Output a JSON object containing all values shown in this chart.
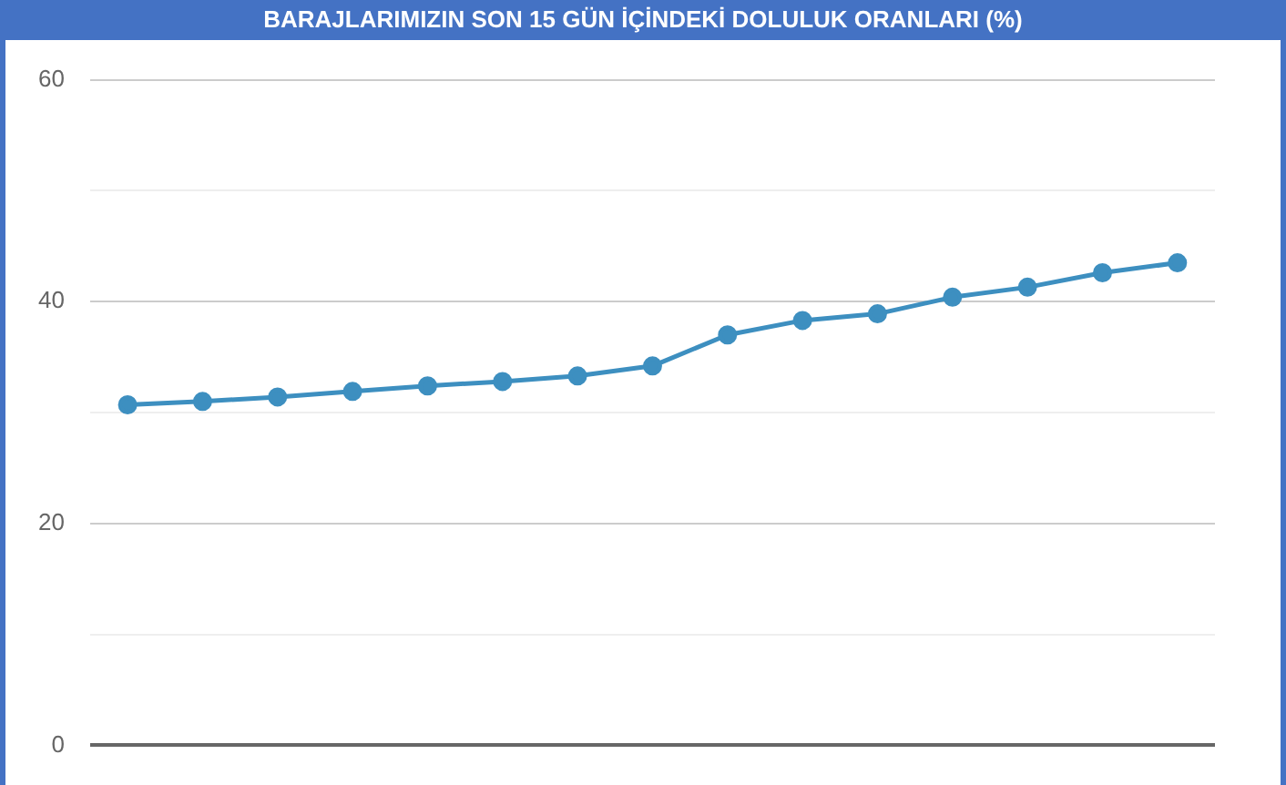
{
  "chart_data": {
    "type": "line",
    "title": "BARAJLARIMIZIN SON 15 GÜN İÇİNDEKİ DOLULUK ORANLARI (%)",
    "categories": [
      null,
      null,
      null,
      null,
      null,
      null,
      null,
      null,
      null,
      null,
      null,
      null,
      null,
      null,
      null
    ],
    "series": [
      {
        "color": "#3d8fc0",
        "values": [
          30.7,
          31.0,
          31.4,
          31.9,
          32.4,
          32.8,
          33.3,
          34.2,
          37.0,
          38.3,
          38.9,
          40.4,
          41.3,
          42.6,
          43.5
        ]
      }
    ],
    "ylim": [
      0,
      60
    ],
    "yticks": [
      0,
      {
        "value": 10,
        "label": null
      },
      20,
      {
        "value": 30,
        "label": null
      },
      40,
      {
        "value": 50,
        "label": null
      },
      60
    ],
    "grid": "y",
    "marker": "circle",
    "line_style": "solid",
    "legend": false
  }
}
